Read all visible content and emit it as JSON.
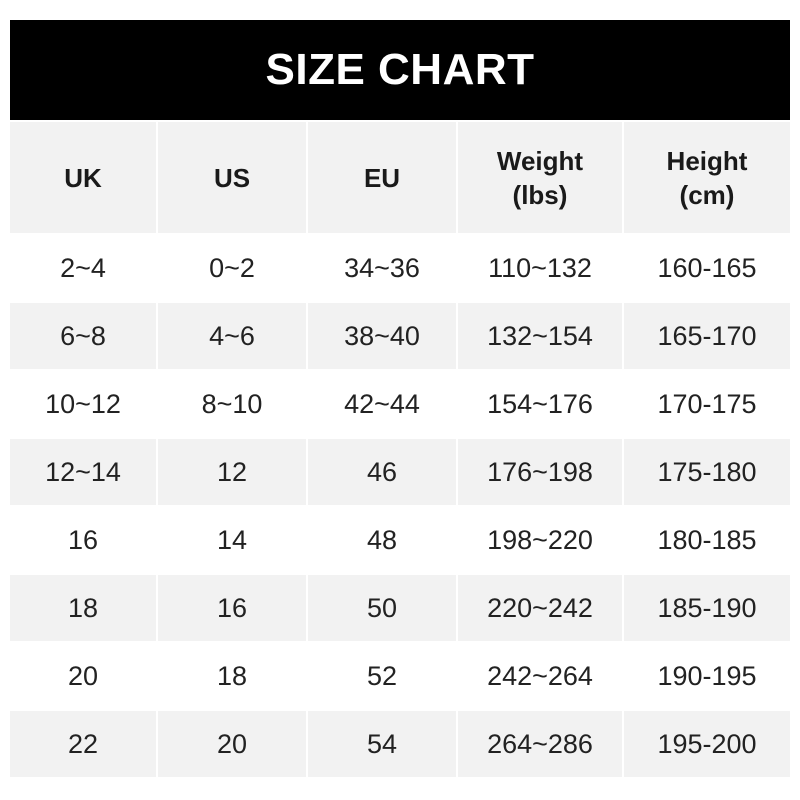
{
  "title": "SIZE CHART",
  "headers": [
    {
      "line1": "UK",
      "line2": ""
    },
    {
      "line1": "US",
      "line2": ""
    },
    {
      "line1": "EU",
      "line2": ""
    },
    {
      "line1": "Weight",
      "line2": "(lbs)"
    },
    {
      "line1": "Height",
      "line2": "(cm)"
    }
  ],
  "rows": [
    [
      "2~4",
      "0~2",
      "34~36",
      "110~132",
      "160-165"
    ],
    [
      "6~8",
      "4~6",
      "38~40",
      "132~154",
      "165-170"
    ],
    [
      "10~12",
      "8~10",
      "42~44",
      "154~176",
      "170-175"
    ],
    [
      "12~14",
      "12",
      "46",
      "176~198",
      "175-180"
    ],
    [
      "16",
      "14",
      "48",
      "198~220",
      "180-185"
    ],
    [
      "18",
      "16",
      "50",
      "220~242",
      "185-190"
    ],
    [
      "20",
      "18",
      "52",
      "242~264",
      "190-195"
    ],
    [
      "22",
      "20",
      "54",
      "264~286",
      "195-200"
    ]
  ],
  "colors": {
    "title_bg": "#000000",
    "stripe": "#f2f2f2"
  }
}
